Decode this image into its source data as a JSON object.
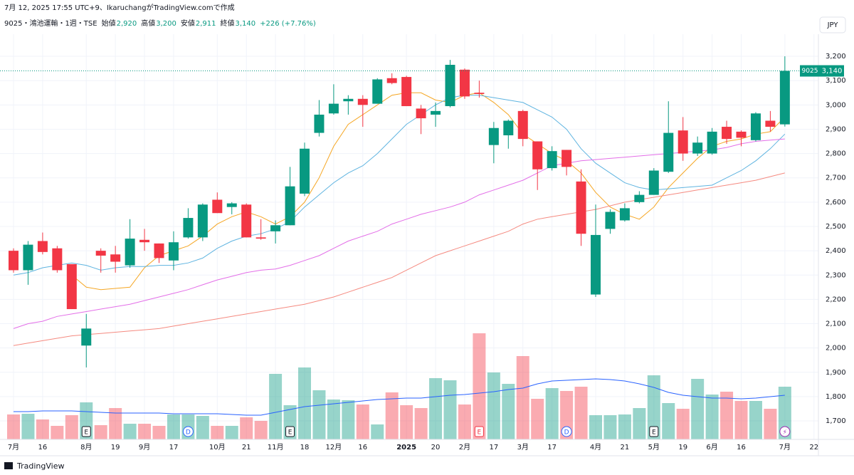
{
  "header": {
    "caption": "7月 12, 2025 17:55 UTC+9、IkaruchangがTradingView.comで作成",
    "symbol": "9025・鴻池運輸・1週・TSE",
    "quote": [
      {
        "label": "始値",
        "value": "2,920"
      },
      {
        "label": "高値",
        "value": "3,200"
      },
      {
        "label": "安値",
        "value": "2,911"
      },
      {
        "label": "終値",
        "value": "3,140"
      }
    ],
    "change": "+226 (+7.76%)",
    "currency": "JPY"
  },
  "footer": {
    "brand": "TradingView"
  },
  "chart_data": {
    "type": "candlestick",
    "ticker": "9025",
    "last_price": {
      "value": 3140,
      "label": "3,140"
    },
    "up_color": "#089981",
    "down_color": "#f23645",
    "categories": [
      "7月",
      null,
      "16",
      null,
      null,
      "8月",
      null,
      "19",
      null,
      "9月",
      null,
      "17",
      null,
      null,
      "10月",
      null,
      "21",
      null,
      "11月",
      null,
      "18",
      null,
      "12月",
      null,
      "16",
      null,
      null,
      "2025",
      null,
      "20",
      null,
      "2月",
      null,
      "17",
      null,
      "3月",
      null,
      "17",
      null,
      null,
      "4月",
      null,
      "21",
      null,
      "5月",
      null,
      "19",
      null,
      "6月",
      null,
      "16",
      null,
      null,
      "7月",
      null,
      "22"
    ],
    "open": [
      2400,
      2320,
      2440,
      2410,
      2345,
      2010,
      2400,
      2385,
      2340,
      2445,
      2430,
      2360,
      2455,
      2455,
      2610,
      2580,
      2590,
      2455,
      2480,
      2505,
      2635,
      2885,
      2965,
      3015,
      3025,
      3005,
      3110,
      3115,
      2985,
      2960,
      2995,
      3145,
      3050,
      2835,
      2875,
      2975,
      2850,
      2740,
      2815,
      2685,
      2220,
      2490,
      2525,
      2600,
      2630,
      2725,
      2895,
      2800,
      2800,
      2910,
      2890,
      2855,
      2935,
      2920,
      null,
      null
    ],
    "high": [
      2410,
      2440,
      2475,
      2420,
      2345,
      2140,
      2410,
      2420,
      2530,
      2490,
      2430,
      2480,
      2575,
      2595,
      2640,
      2600,
      2595,
      2530,
      2525,
      2745,
      2845,
      3020,
      3085,
      3040,
      3040,
      3110,
      3130,
      3120,
      3000,
      3010,
      3185,
      3150,
      3100,
      2930,
      2940,
      2980,
      2850,
      2830,
      2815,
      2735,
      2590,
      2570,
      2595,
      2645,
      2740,
      3015,
      2950,
      2870,
      2905,
      2935,
      2895,
      2970,
      2975,
      3200,
      null,
      null
    ],
    "low": [
      2310,
      2260,
      2385,
      2310,
      2160,
      1920,
      2310,
      2310,
      2330,
      2400,
      2350,
      2320,
      2450,
      2440,
      2555,
      2550,
      2455,
      2445,
      2430,
      2505,
      2625,
      2870,
      2960,
      2960,
      2910,
      3005,
      3085,
      2995,
      2880,
      2910,
      2990,
      3025,
      3030,
      2760,
      2820,
      2830,
      2650,
      2730,
      2710,
      2420,
      2210,
      2470,
      2520,
      2595,
      2630,
      2720,
      2770,
      2790,
      2795,
      2840,
      2830,
      2850,
      2890,
      2911,
      null,
      null
    ],
    "close": [
      2320,
      2425,
      2395,
      2320,
      2160,
      2080,
      2380,
      2355,
      2450,
      2435,
      2370,
      2435,
      2535,
      2590,
      2555,
      2595,
      2455,
      2450,
      2505,
      2665,
      2820,
      2960,
      3005,
      3025,
      3000,
      3105,
      3090,
      2995,
      2945,
      2975,
      3165,
      3035,
      3045,
      2905,
      2935,
      2860,
      2735,
      2810,
      2745,
      2470,
      2465,
      2560,
      2575,
      2630,
      2730,
      2885,
      2800,
      2845,
      2890,
      2860,
      2865,
      2965,
      2910,
      3140,
      null,
      null
    ],
    "volume": [
      35,
      36,
      28,
      19,
      34,
      52,
      20,
      44,
      22,
      22,
      19,
      35,
      35,
      33,
      19,
      19,
      31,
      26,
      92,
      48,
      101,
      69,
      56,
      55,
      49,
      21,
      66,
      48,
      44,
      86,
      83,
      49,
      149,
      94,
      78,
      117,
      57,
      72,
      68,
      74,
      34,
      34,
      35,
      44,
      90,
      51,
      43,
      85,
      63,
      67,
      54,
      54,
      43,
      74,
      null,
      null
    ],
    "volume_ma": {
      "color": "#2962ff",
      "values": [
        39,
        39,
        40,
        40,
        40,
        39,
        38,
        37,
        37,
        37,
        37,
        36,
        36,
        36,
        36,
        35,
        34,
        34,
        38,
        42,
        46,
        48,
        50,
        52,
        54,
        56,
        57,
        58,
        58,
        60,
        62,
        63,
        65,
        67,
        70,
        72,
        78,
        82,
        83,
        84,
        85,
        84,
        82,
        78,
        73,
        66,
        62,
        60,
        58,
        58,
        57,
        58,
        60,
        62,
        null,
        null
      ]
    },
    "moving_averages": [
      {
        "color": "#f5a623",
        "values": [
          null,
          null,
          null,
          null,
          2300,
          2250,
          2240,
          2245,
          2250,
          2330,
          2380,
          2400,
          2420,
          2460,
          2510,
          2540,
          2560,
          2540,
          2510,
          2540,
          2600,
          2700,
          2830,
          2920,
          2960,
          3000,
          3040,
          3050,
          3050,
          3020,
          3010,
          3040,
          3050,
          3010,
          2960,
          2880,
          2840,
          2800,
          2770,
          2720,
          2640,
          2580,
          2550,
          2530,
          2580,
          2660,
          2720,
          2780,
          2830,
          2850,
          2860,
          2880,
          2890,
          2950,
          null,
          null
        ]
      },
      {
        "color": "#5fb4e0",
        "values": [
          2300,
          2310,
          2330,
          2340,
          2350,
          2340,
          2320,
          2330,
          2335,
          2335,
          2340,
          2340,
          2350,
          2370,
          2410,
          2440,
          2460,
          2470,
          2490,
          2520,
          2580,
          2630,
          2680,
          2720,
          2750,
          2800,
          2860,
          2920,
          2960,
          3000,
          3030,
          3040,
          3040,
          3030,
          3020,
          3010,
          2980,
          2950,
          2900,
          2820,
          2760,
          2720,
          2680,
          2660,
          2650,
          2655,
          2660,
          2665,
          2670,
          2700,
          2730,
          2770,
          2820,
          2880,
          null,
          null
        ]
      },
      {
        "color": "#e36ee8",
        "values": [
          2080,
          2100,
          2110,
          2130,
          2140,
          2150,
          2160,
          2170,
          2180,
          2195,
          2210,
          2225,
          2240,
          2260,
          2280,
          2295,
          2310,
          2320,
          2325,
          2340,
          2360,
          2380,
          2410,
          2440,
          2460,
          2480,
          2510,
          2530,
          2550,
          2565,
          2580,
          2600,
          2630,
          2650,
          2670,
          2690,
          2720,
          2750,
          2760,
          2770,
          2775,
          2780,
          2785,
          2790,
          2795,
          2800,
          2805,
          2810,
          2815,
          2825,
          2840,
          2850,
          2855,
          2860,
          null,
          null
        ]
      },
      {
        "color": "#f58a80",
        "values": [
          2010,
          2020,
          2030,
          2040,
          2050,
          2055,
          2060,
          2065,
          2070,
          2075,
          2080,
          2090,
          2100,
          2110,
          2120,
          2130,
          2140,
          2150,
          2160,
          2170,
          2180,
          2195,
          2210,
          2230,
          2250,
          2270,
          2290,
          2320,
          2350,
          2380,
          2400,
          2420,
          2440,
          2460,
          2480,
          2510,
          2530,
          2540,
          2550,
          2560,
          2570,
          2585,
          2600,
          2610,
          2620,
          2630,
          2640,
          2650,
          2660,
          2670,
          2680,
          2690,
          2705,
          2720,
          null,
          null
        ]
      }
    ],
    "events": [
      {
        "label": "E",
        "index": 5
      },
      {
        "label": "D",
        "index": 12
      },
      {
        "label": "E",
        "index": 19
      },
      {
        "label": "E",
        "index": 32
      },
      {
        "label": "D",
        "index": 38
      },
      {
        "label": "E",
        "index": 44
      },
      {
        "label": "⚡",
        "index": 53
      }
    ],
    "ylim": [
      1624,
      3291
    ],
    "yticks": [
      {
        "value": 1700,
        "label": "1,700"
      },
      {
        "value": 1800,
        "label": "1,800"
      },
      {
        "value": 1900,
        "label": "1,900"
      },
      {
        "value": 2000,
        "label": "2,000"
      },
      {
        "value": 2100,
        "label": "2,100"
      },
      {
        "value": 2200,
        "label": "2,200"
      },
      {
        "value": 2300,
        "label": "2,300"
      },
      {
        "value": 2400,
        "label": "2,400"
      },
      {
        "value": 2500,
        "label": "2,500"
      },
      {
        "value": 2600,
        "label": "2,600"
      },
      {
        "value": 2700,
        "label": "2,700"
      },
      {
        "value": 2800,
        "label": "2,800"
      },
      {
        "value": 2900,
        "label": "2,900"
      },
      {
        "value": 3000,
        "label": "3,000"
      },
      {
        "value": 3100,
        "label": "3,100"
      },
      {
        "value": 3200,
        "label": "3,200"
      }
    ],
    "grid": true
  }
}
